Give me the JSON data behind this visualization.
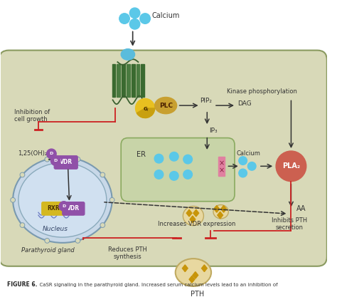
{
  "bg_color": "#ffffff",
  "cell_bg": "#d8d9b8",
  "cell_edge": "#8a9a60",
  "nucleus_bg": "#c8d8e8",
  "nucleus_edge": "#7a9ab0",
  "er_bg": "#c8d4a8",
  "er_edge": "#8aaa60",
  "calcium_color": "#5bc8e8",
  "pla_color": "#cc6050",
  "g_color": "#e8c020",
  "g_dark": "#c8a010",
  "plc_color": "#c8a030",
  "vdr_color": "#9050a8",
  "rxr_color": "#d4b820",
  "d_color": "#9050a8",
  "arrow_black": "#333333",
  "arrow_red": "#cc2222",
  "membrane_dark": "#3a6030",
  "membrane_mid": "#5a8040",
  "label_calcium": "Calcium",
  "label_pip2": "PIP₂",
  "label_dag": "DAG",
  "label_ip3": "IP₃",
  "label_er": "ER",
  "label_kinase": "Kinase phosphorylation",
  "label_calcium2": "Calcium",
  "label_pla": "PLA₂",
  "label_aa": "AA",
  "label_vdr_expr": "Increases VDR expression",
  "label_nucleus": "Nucleus",
  "label_cell": "Parathyroid gland",
  "label_inhibit_growth": "Inhibition of\ncell growth",
  "label_125": "1,25(OH)₂-D",
  "label_reduces_pth": "Reduces PTH\nsynthesis",
  "label_inhibits_pth": "Inhibits PTH\nsecretion",
  "label_pth": "PTH",
  "fig_bold": "FIGURE 6.",
  "fig_caption": "  CaSR signaling in the parathyroid gland. Increased serum calcium levels lead to an inhibition of"
}
